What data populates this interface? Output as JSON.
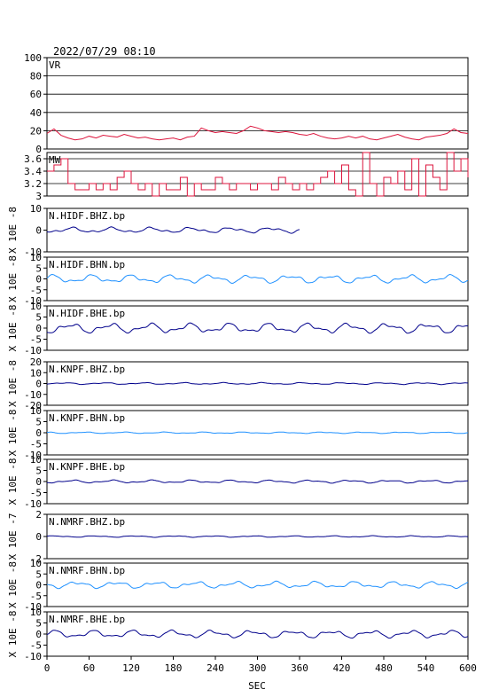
{
  "header": {
    "timestamp": "2022/07/29 08:10"
  },
  "xaxis": {
    "label": "SEC",
    "ticks": [
      0,
      60,
      120,
      180,
      240,
      300,
      360,
      420,
      480,
      540,
      600
    ],
    "range": [
      0,
      600
    ]
  },
  "colors": {
    "vr": "#dc143c",
    "mw": "#dc143c",
    "dark_blue": "#00008b",
    "light_blue": "#1e90ff",
    "grid": "#000000"
  },
  "chart_data": [
    {
      "type": "line",
      "name": "VR",
      "label": "VR",
      "ylim": [
        0,
        100
      ],
      "yticks": [
        0,
        20,
        40,
        60,
        80,
        100
      ],
      "grid": true,
      "color": "#dc143c",
      "x": [
        0,
        10,
        20,
        30,
        40,
        50,
        60,
        70,
        80,
        90,
        100,
        110,
        120,
        130,
        140,
        150,
        160,
        170,
        180,
        190,
        200,
        210,
        220,
        230,
        240,
        250,
        260,
        270,
        280,
        290,
        300,
        310,
        320,
        330,
        340,
        350,
        360,
        370,
        380,
        390,
        400,
        410,
        420,
        430,
        440,
        450,
        460,
        470,
        480,
        490,
        500,
        510,
        520,
        530,
        540,
        550,
        560,
        570,
        580,
        590,
        600
      ],
      "values": [
        17,
        22,
        15,
        12,
        10,
        11,
        14,
        12,
        15,
        14,
        13,
        16,
        14,
        12,
        13,
        11,
        10,
        11,
        12,
        10,
        13,
        14,
        23,
        20,
        18,
        19,
        18,
        17,
        20,
        25,
        23,
        20,
        19,
        18,
        19,
        18,
        16,
        15,
        17,
        14,
        12,
        11,
        12,
        14,
        12,
        14,
        11,
        10,
        12,
        14,
        16,
        13,
        11,
        10,
        13,
        14,
        15,
        17,
        22,
        18,
        17
      ]
    },
    {
      "type": "line",
      "name": "MW",
      "label": "MW",
      "ylim": [
        3.0,
        3.7
      ],
      "yticks": [
        3.0,
        3.2,
        3.4,
        3.6
      ],
      "grid": true,
      "color": "#dc143c",
      "step": true,
      "x": [
        0,
        10,
        20,
        30,
        40,
        50,
        60,
        70,
        80,
        90,
        100,
        110,
        120,
        130,
        140,
        150,
        160,
        170,
        180,
        190,
        200,
        210,
        220,
        230,
        240,
        250,
        260,
        270,
        280,
        290,
        300,
        310,
        320,
        330,
        340,
        350,
        360,
        370,
        380,
        390,
        400,
        410,
        420,
        430,
        440,
        450,
        460,
        470,
        480,
        490,
        500,
        510,
        520,
        530,
        540,
        550,
        560,
        570,
        580,
        590,
        600
      ],
      "values": [
        3.4,
        3.5,
        3.6,
        3.2,
        3.1,
        3.1,
        3.2,
        3.1,
        3.2,
        3.1,
        3.3,
        3.4,
        3.2,
        3.1,
        3.2,
        3.0,
        3.2,
        3.1,
        3.1,
        3.3,
        3.0,
        3.2,
        3.1,
        3.1,
        3.3,
        3.2,
        3.1,
        3.2,
        3.2,
        3.1,
        3.2,
        3.2,
        3.1,
        3.3,
        3.2,
        3.1,
        3.2,
        3.1,
        3.2,
        3.3,
        3.4,
        3.2,
        3.5,
        3.1,
        3.0,
        3.7,
        3.2,
        3.0,
        3.3,
        3.2,
        3.4,
        3.1,
        3.6,
        3.0,
        3.5,
        3.3,
        3.1,
        3.7,
        3.4,
        3.6,
        3.3
      ]
    },
    {
      "type": "line",
      "name": "N.HIDF.BHZ.bp",
      "label": "N.HIDF.BHZ.bp",
      "unit": "X 10E -8",
      "ylim": [
        -10,
        10
      ],
      "yticks": [
        -10,
        0,
        10
      ],
      "color": "#00008b",
      "x_end": 360,
      "amp": 0.15,
      "seed": 11
    },
    {
      "type": "line",
      "name": "N.HIDF.BHN.bp",
      "label": "N.HIDF.BHN.bp",
      "unit": "X 10E -8",
      "ylim": [
        -10,
        10
      ],
      "yticks": [
        -10,
        -5,
        0,
        5,
        10
      ],
      "color": "#1e90ff",
      "x_end": 600,
      "amp": 0.22,
      "seed": 23
    },
    {
      "type": "line",
      "name": "N.HIDF.BHE.bp",
      "label": "N.HIDF.BHE.bp",
      "unit": "X 10E -8",
      "ylim": [
        -10,
        10
      ],
      "yticks": [
        -10,
        -5,
        0,
        5,
        10
      ],
      "color": "#00008b",
      "x_end": 600,
      "amp": 0.26,
      "seed": 37
    },
    {
      "type": "line",
      "name": "N.KNPF.BHZ.bp",
      "label": "N.KNPF.BHZ.bp",
      "unit": "X 10E -8",
      "ylim": [
        -20,
        20
      ],
      "yticks": [
        -20,
        -10,
        0,
        10,
        20
      ],
      "color": "#00008b",
      "x_end": 600,
      "amp": 0.05,
      "seed": 41
    },
    {
      "type": "line",
      "name": "N.KNPF.BHN.bp",
      "label": "N.KNPF.BHN.bp",
      "unit": "X 10E -8",
      "ylim": [
        -10,
        10
      ],
      "yticks": [
        -10,
        -5,
        0,
        5,
        10
      ],
      "color": "#1e90ff",
      "x_end": 600,
      "amp": 0.04,
      "seed": 53
    },
    {
      "type": "line",
      "name": "N.KNPF.BHE.bp",
      "label": "N.KNPF.BHE.bp",
      "unit": "X 10E -8",
      "ylim": [
        -10,
        10
      ],
      "yticks": [
        -10,
        -5,
        0,
        5,
        10
      ],
      "color": "#00008b",
      "x_end": 600,
      "amp": 0.08,
      "seed": 61
    },
    {
      "type": "line",
      "name": "N.NMRF.BHZ.bp",
      "label": "N.NMRF.BHZ.bp",
      "unit": "X 10E -7",
      "ylim": [
        -2,
        2
      ],
      "yticks": [
        -2,
        0,
        2
      ],
      "color": "#00008b",
      "x_end": 600,
      "amp": 0.04,
      "seed": 71
    },
    {
      "type": "line",
      "name": "N.NMRF.BHN.bp",
      "label": "N.NMRF.BHN.bp",
      "unit": "X 10E -8",
      "ylim": [
        -10,
        10
      ],
      "yticks": [
        -10,
        -5,
        0,
        5,
        10
      ],
      "color": "#1e90ff",
      "x_end": 600,
      "amp": 0.18,
      "seed": 83
    },
    {
      "type": "line",
      "name": "N.NMRF.BHE.bp",
      "label": "N.NMRF.BHE.bp",
      "unit": "X 10E -8",
      "ylim": [
        -10,
        10
      ],
      "yticks": [
        -10,
        -5,
        0,
        5,
        10
      ],
      "color": "#00008b",
      "x_end": 600,
      "amp": 0.2,
      "seed": 97
    }
  ]
}
